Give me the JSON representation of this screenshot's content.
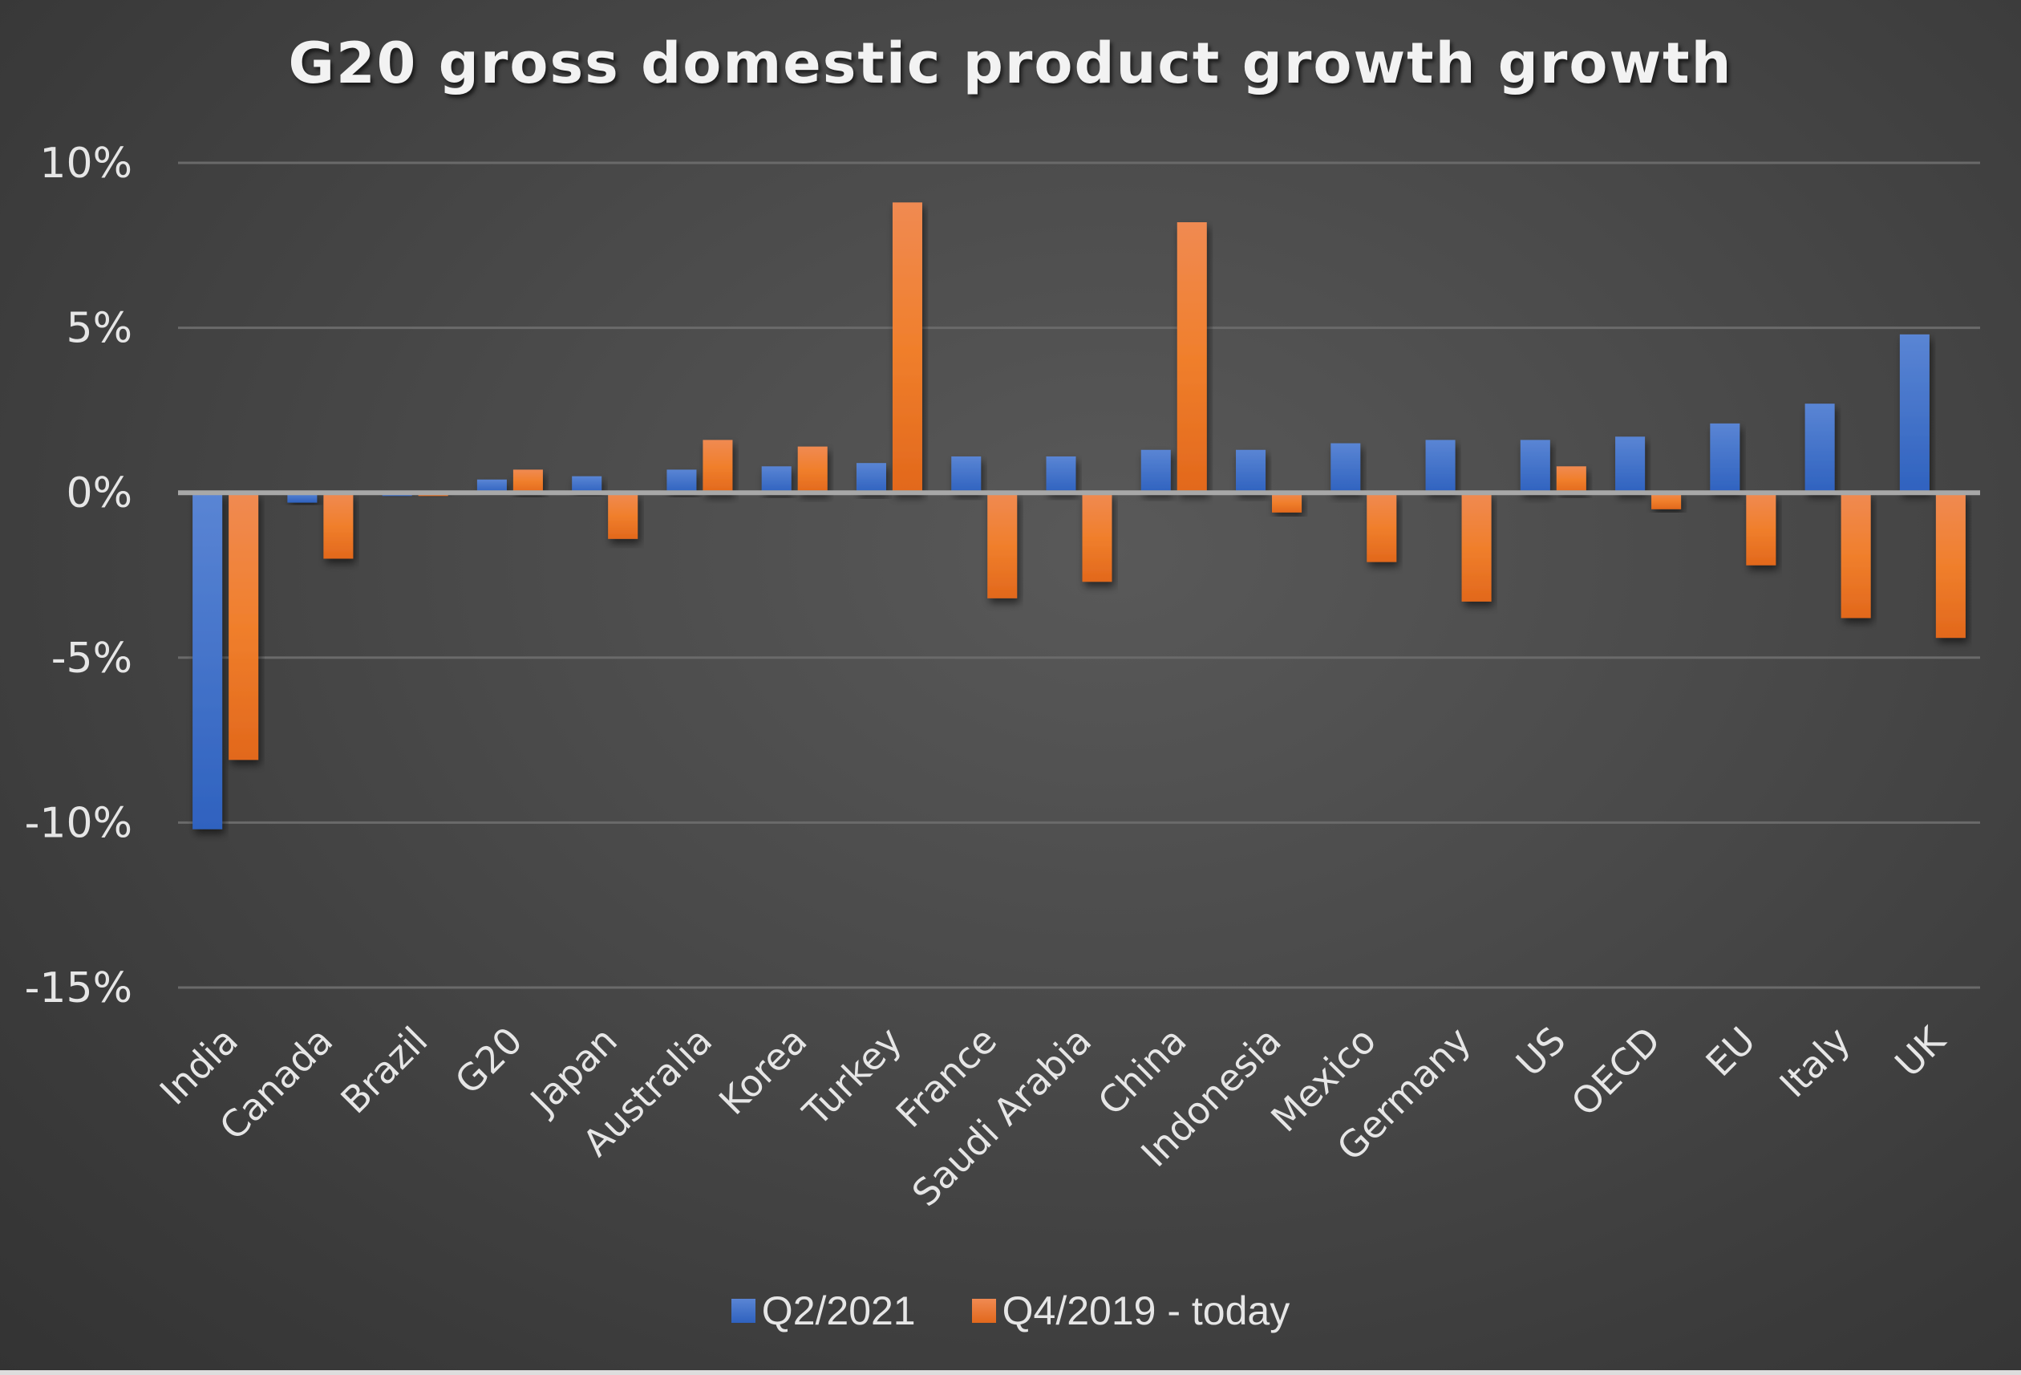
{
  "chart_data": {
    "type": "bar",
    "title": "G20 gross domestic product growth  growth",
    "xlabel": "",
    "ylabel": "",
    "ylim": [
      -15,
      10
    ],
    "yticks": [
      "10%",
      "5%",
      "0%",
      "-5%",
      "-10%",
      "-15%"
    ],
    "ytick_values": [
      10,
      5,
      0,
      -5,
      -10,
      -15
    ],
    "grid": true,
    "legend_position": "bottom",
    "categories": [
      "India",
      "Canada",
      "Brazil",
      "G20",
      "Japan",
      "Australia",
      "Korea",
      "Turkey",
      "France",
      "Saudi Arabia",
      "China",
      "Indonesia",
      "Mexico",
      "Germany",
      "US",
      "OECD",
      "EU",
      "Italy",
      "UK"
    ],
    "series": [
      {
        "name": "Q2/2021",
        "color": "#4472C4",
        "values": [
          -10.2,
          -0.3,
          -0.1,
          0.4,
          0.5,
          0.7,
          0.8,
          0.9,
          1.1,
          1.1,
          1.3,
          1.3,
          1.5,
          1.6,
          1.6,
          1.7,
          2.1,
          2.7,
          4.8
        ]
      },
      {
        "name": "Q4/2019 - today",
        "color": "#ED7D31",
        "values": [
          -8.1,
          -2.0,
          -0.1,
          0.7,
          -1.4,
          1.6,
          1.4,
          8.8,
          -3.2,
          -2.7,
          8.2,
          -0.6,
          -2.1,
          -3.3,
          0.8,
          -0.5,
          -2.2,
          -3.8,
          -4.4
        ]
      }
    ]
  }
}
